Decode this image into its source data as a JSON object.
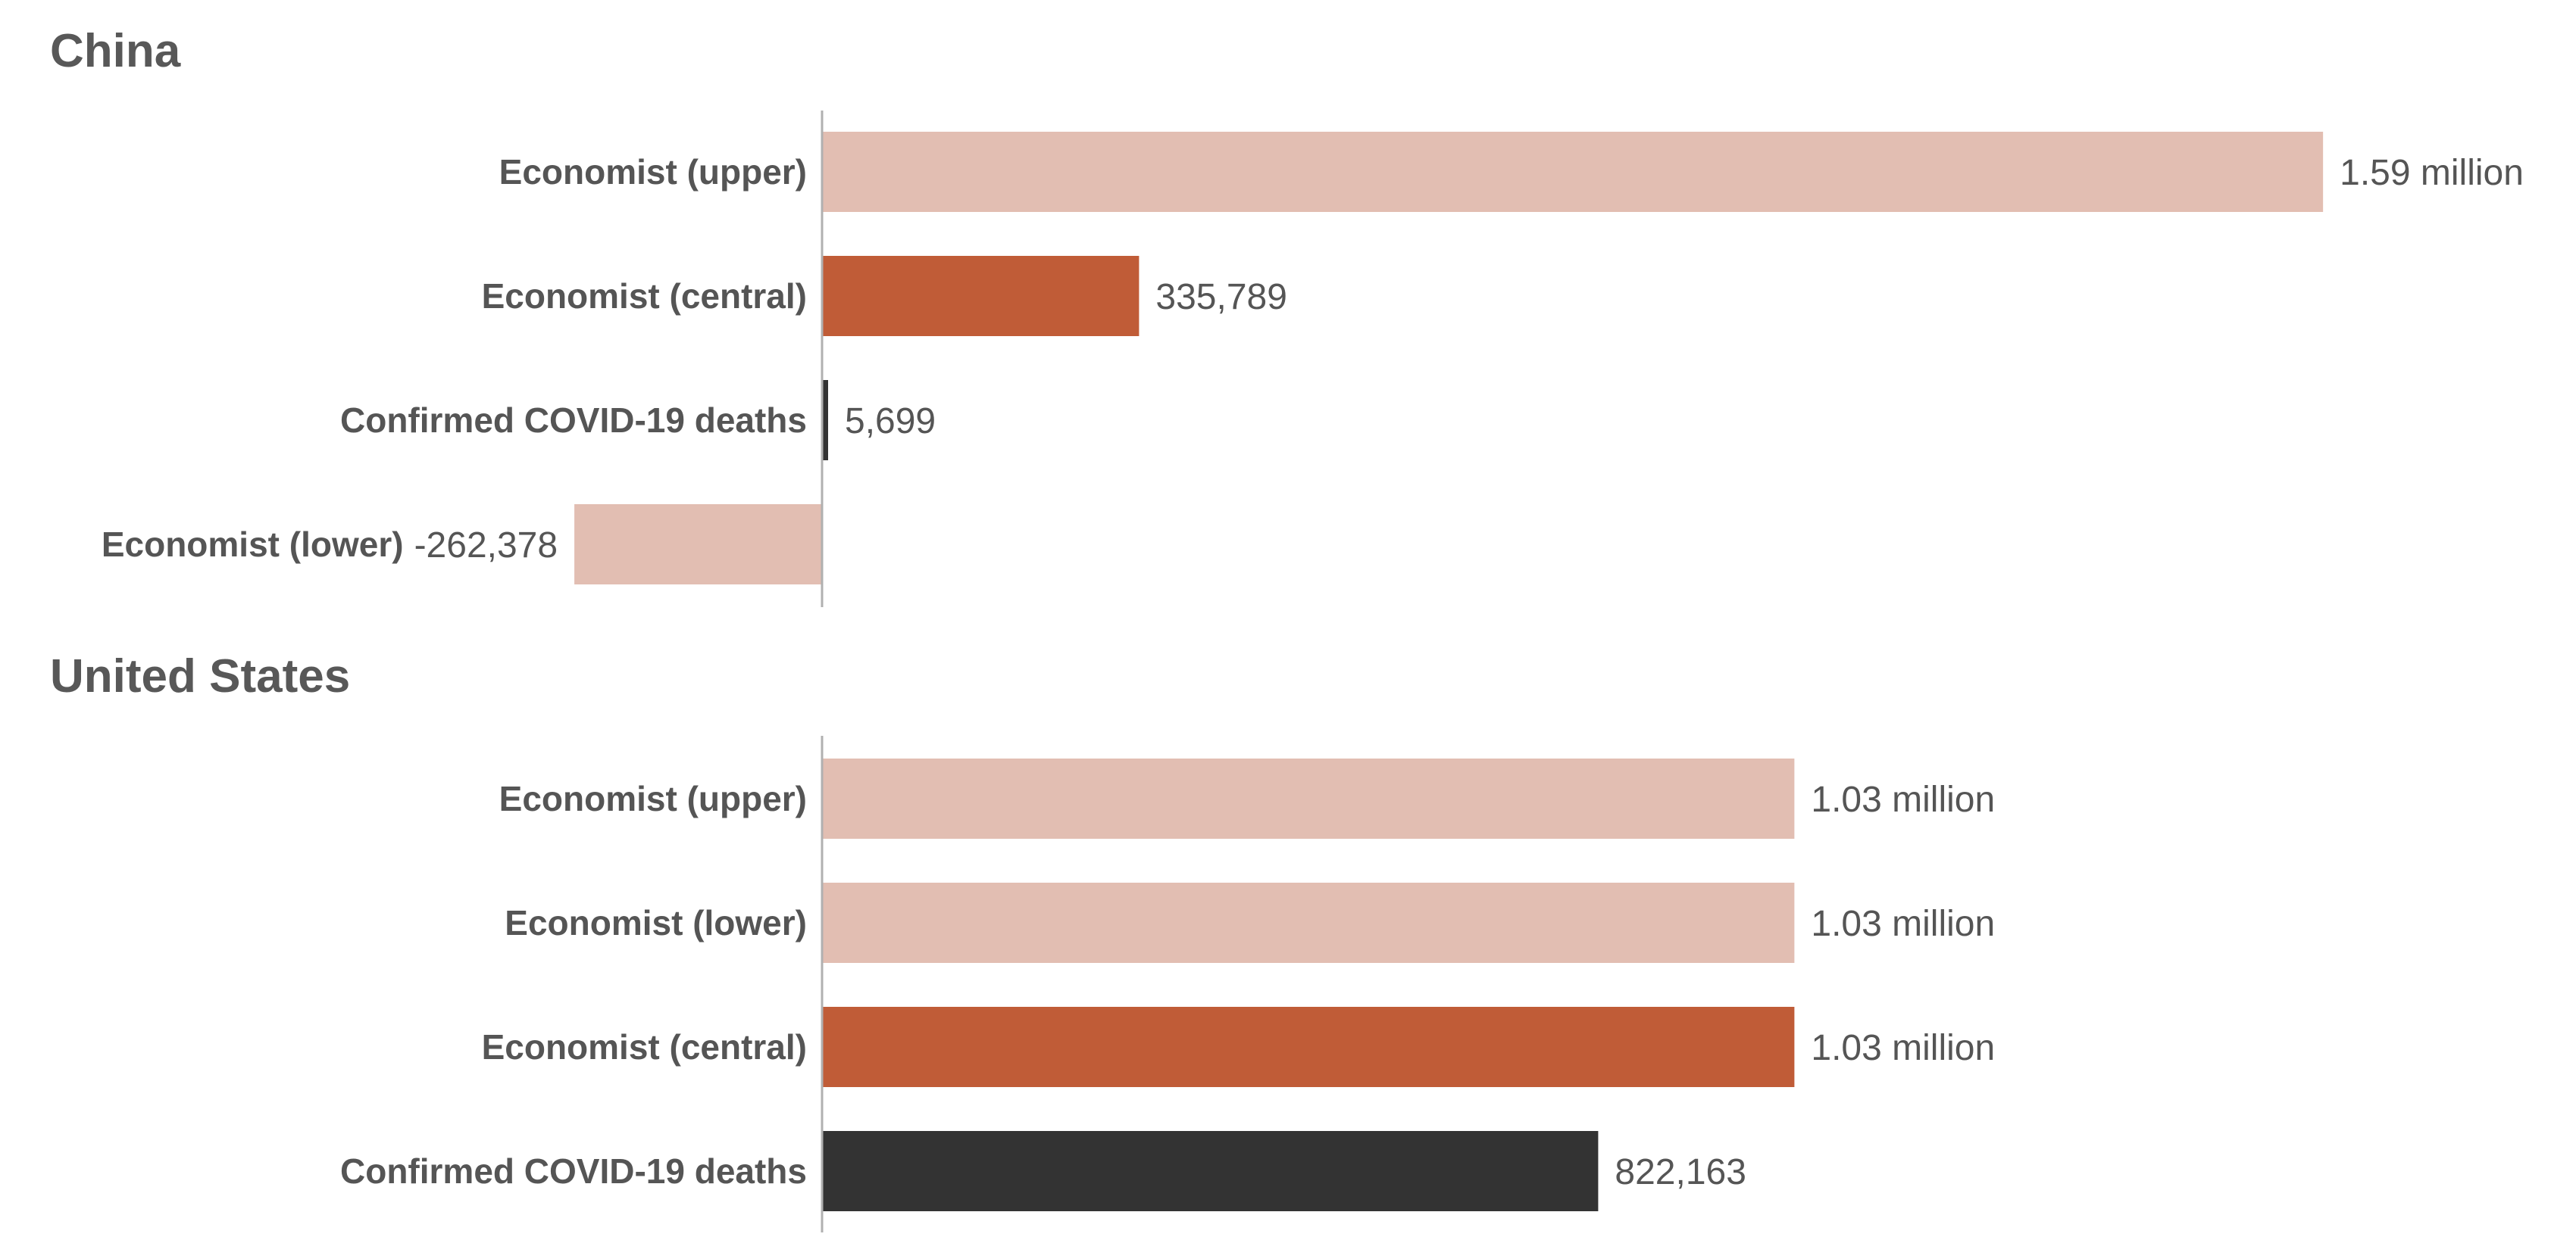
{
  "colors": {
    "upper_lower": "#e2beb2",
    "central": "#c05c37",
    "confirmed": "#333333",
    "axis": "#b0b0b0",
    "text": "#555555"
  },
  "chart_data": [
    {
      "type": "bar",
      "orientation": "horizontal",
      "title": "China",
      "categories": [
        "Economist (upper)",
        "Economist (central)",
        "Confirmed COVID-19 deaths",
        "Economist (lower)"
      ],
      "values": [
        1590000,
        335789,
        5699,
        -262378
      ],
      "value_labels": [
        "1.59 million",
        "335,789",
        "5,699",
        "-262,378"
      ],
      "bar_kinds": [
        "upper",
        "central",
        "confirmed",
        "lower"
      ],
      "xlabel": "",
      "ylabel": "",
      "grid": false
    },
    {
      "type": "bar",
      "orientation": "horizontal",
      "title": "United States",
      "categories": [
        "Economist (upper)",
        "Economist (lower)",
        "Economist (central)",
        "Confirmed COVID-19 deaths"
      ],
      "values": [
        1030000,
        1030000,
        1030000,
        822163
      ],
      "value_labels": [
        "1.03 million",
        "1.03 million",
        "1.03 million",
        "822,163"
      ],
      "bar_kinds": [
        "upper",
        "lower",
        "central",
        "confirmed"
      ],
      "xlabel": "",
      "ylabel": "",
      "grid": false
    }
  ]
}
